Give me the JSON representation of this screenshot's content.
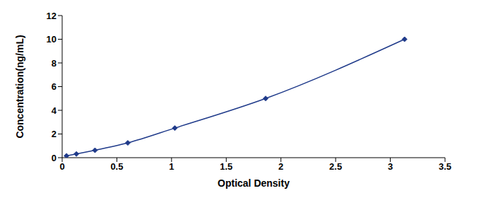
{
  "chart_data": {
    "type": "line",
    "x": [
      0.04,
      0.13,
      0.3,
      0.6,
      1.03,
      1.86,
      3.13
    ],
    "values": [
      0.156,
      0.312,
      0.625,
      1.25,
      2.5,
      5,
      10
    ],
    "color": "#1f3a8a",
    "marker": "diamond",
    "xlabel": "Optical Density",
    "ylabel": "Concentration(ng/mL)",
    "xlim": [
      0,
      3.5
    ],
    "xticks": [
      0,
      0.5,
      1,
      1.5,
      2,
      2.5,
      3,
      3.5
    ],
    "ylim": [
      0,
      12
    ],
    "yticks": [
      0,
      2,
      4,
      6,
      8,
      10,
      12
    ],
    "grid": false
  }
}
